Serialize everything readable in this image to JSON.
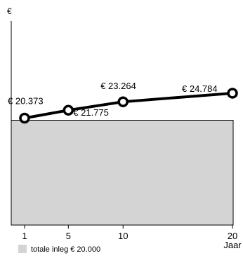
{
  "chart_data": {
    "type": "line",
    "y_unit": "€",
    "x_unit": "Jaar",
    "x": [
      1,
      5,
      10,
      20
    ],
    "x_ticks": [
      "1",
      "5",
      "10",
      "20"
    ],
    "xlim": [
      0,
      20
    ],
    "series": [
      {
        "values": [
          20373,
          21775,
          23264,
          24784
        ],
        "labels": [
          "€ 20.373",
          "€ 21.775",
          "€ 23.264",
          "€ 24.784"
        ]
      }
    ],
    "area": {
      "value": 20000,
      "legend_label": "totale inleg € 20.000",
      "color": "#d4d4d4"
    },
    "line_color": "#000000",
    "marker_fill": "#ffffff",
    "grid": false
  }
}
